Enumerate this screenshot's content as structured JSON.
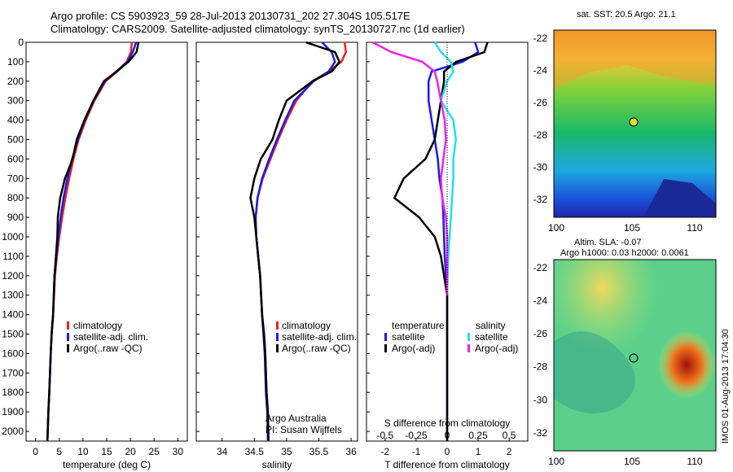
{
  "header": {
    "line1": "Argo profile: CS 5903923_59 28-Jul-2013 20130731_202 27.304S 105.517E",
    "line2": "Climatology: CARS2009. Satellite-adjusted climatology: synTS_20130727.nc (1d earlier)"
  },
  "maps": {
    "sst_title": "sat. SST: 20.5 Argo: 21.1",
    "sla_title1": "Altim. SLA: -0.07",
    "sla_title2": "Argo h1000: 0.03 h2000: 0.0061",
    "lat_ticks": [
      "-22",
      "-24",
      "-26",
      "-28",
      "-30",
      "-32"
    ],
    "lon_ticks": [
      "100",
      "105",
      "110"
    ],
    "argo_lat": -27.304,
    "argo_lon": 105.517
  },
  "stamp": "IMOS 01-Aug-2013 17:04:30",
  "colors": {
    "climatology": "#ee2020",
    "satellite": "#1a1ae6",
    "argo": "#000000",
    "sal_sat": "#22e0ee",
    "sal_argo": "#ee22ee"
  },
  "annotations": {
    "source": "Argo Australia",
    "pi": "PI: Susan Wijffels"
  },
  "chart_data": [
    {
      "type": "line",
      "xlabel": "temperature (deg C)",
      "ylabel": "",
      "xlim": [
        -2,
        32
      ],
      "ylim": [
        0,
        2050
      ],
      "xticks": [
        "0",
        "5",
        "10",
        "15",
        "20",
        "25",
        "30"
      ],
      "yticks": [
        "0",
        "100",
        "200",
        "300",
        "400",
        "500",
        "600",
        "700",
        "800",
        "900",
        "1000",
        "1100",
        "1200",
        "1300",
        "1400",
        "1500",
        "1600",
        "1700",
        "1800",
        "1900",
        "2000"
      ],
      "legend": [
        "climatology",
        "satellite-adj. clim.",
        "Argo(..raw -QC)"
      ],
      "series": [
        {
          "name": "climatology",
          "color": "#ee2020",
          "x": [
            20.3,
            20.1,
            19.2,
            17.2,
            14.8,
            12.4,
            10.6,
            9.1,
            8.0,
            7.1,
            6.3,
            5.6,
            5.0,
            4.5,
            4.1,
            3.7,
            3.4,
            3.2,
            2.9,
            2.7,
            2.5
          ],
          "y": [
            0,
            50,
            100,
            150,
            200,
            300,
            400,
            500,
            600,
            700,
            800,
            900,
            1000,
            1100,
            1200,
            1400,
            1500,
            1600,
            1800,
            1900,
            2050
          ]
        },
        {
          "name": "satellite-adj. clim.",
          "color": "#1a1ae6",
          "x": [
            21.2,
            20.5,
            19.4,
            17.0,
            14.6,
            12.2,
            10.4,
            8.9,
            7.7,
            6.7,
            5.9,
            5.3,
            4.8,
            4.4,
            4.0,
            3.7,
            3.4,
            3.2,
            2.9,
            2.7,
            2.5
          ],
          "y": [
            0,
            50,
            100,
            150,
            200,
            300,
            400,
            500,
            600,
            700,
            800,
            900,
            1000,
            1100,
            1200,
            1400,
            1500,
            1600,
            1800,
            1900,
            2050
          ]
        },
        {
          "name": "Argo(..raw -QC)",
          "color": "#000000",
          "x": [
            21.7,
            21.3,
            19.6,
            17.1,
            14.4,
            12.2,
            10.3,
            8.7,
            7.8,
            6.2,
            5.2,
            4.7,
            4.6,
            4.3,
            4.0,
            3.7,
            3.4,
            3.2,
            2.9,
            2.7,
            2.5
          ],
          "y": [
            0,
            50,
            100,
            150,
            200,
            300,
            400,
            500,
            600,
            700,
            800,
            900,
            1000,
            1100,
            1200,
            1400,
            1500,
            1600,
            1800,
            1900,
            2050
          ]
        }
      ]
    },
    {
      "type": "line",
      "xlabel": "salinity",
      "ylabel": "",
      "xlim": [
        33.6,
        36.1
      ],
      "ylim": [
        0,
        2050
      ],
      "xticks": [
        "34",
        "34.5",
        "35",
        "35.5",
        "36"
      ],
      "legend": [
        "climatology",
        "satellite-adj. clim.",
        "Argo(..raw -QC)"
      ],
      "series": [
        {
          "name": "climatology",
          "color": "#ee2020",
          "x": [
            35.9,
            35.92,
            35.85,
            35.65,
            35.4,
            35.15,
            35.0,
            34.87,
            34.75,
            34.63,
            34.55,
            34.52,
            34.53,
            34.56,
            34.59,
            34.62,
            34.65,
            34.67,
            34.69,
            34.71,
            34.72
          ],
          "y": [
            0,
            50,
            100,
            150,
            200,
            300,
            400,
            500,
            600,
            700,
            800,
            900,
            1000,
            1100,
            1200,
            1400,
            1500,
            1600,
            1800,
            1900,
            2050
          ]
        },
        {
          "name": "satellite-adj. clim.",
          "color": "#1a1ae6",
          "x": [
            35.55,
            35.7,
            35.75,
            35.65,
            35.42,
            35.12,
            34.98,
            34.85,
            34.73,
            34.62,
            34.55,
            34.52,
            34.53,
            34.56,
            34.59,
            34.62,
            34.64,
            34.66,
            34.68,
            34.7,
            34.71
          ],
          "y": [
            0,
            50,
            100,
            150,
            200,
            300,
            400,
            500,
            600,
            700,
            800,
            900,
            1000,
            1100,
            1200,
            1400,
            1500,
            1600,
            1800,
            1900,
            2050
          ]
        },
        {
          "name": "Argo(..raw -QC)",
          "color": "#000000",
          "x": [
            35.3,
            35.75,
            35.82,
            35.7,
            35.4,
            35.0,
            34.88,
            34.78,
            34.6,
            34.5,
            34.44,
            34.5,
            34.53,
            34.56,
            34.59,
            34.62,
            34.65,
            34.67,
            34.69,
            34.71,
            34.72
          ],
          "y": [
            0,
            50,
            100,
            150,
            200,
            300,
            400,
            500,
            600,
            700,
            800,
            900,
            1000,
            1100,
            1200,
            1400,
            1500,
            1600,
            1800,
            1900,
            2050
          ]
        }
      ]
    },
    {
      "type": "line",
      "xlabel": "T difference from climatology",
      "xlabel2": "S difference from climatology",
      "xlim": [
        -2.6,
        2.6
      ],
      "xlim_s": [
        -0.65,
        0.65
      ],
      "ylim": [
        0,
        2050
      ],
      "xticks": [
        "-2",
        "-1",
        "0",
        "1",
        "2"
      ],
      "xticks_s": [
        "-0.5",
        "-0.25",
        "0",
        "0.25",
        "0.5"
      ],
      "legend_titles": [
        "temperature",
        "salinity"
      ],
      "legend": [
        "satellite",
        "Argo(-adj)",
        "satellite",
        "Argo(-adj)"
      ],
      "series": [
        {
          "name": "satellite",
          "group": "temperature",
          "color": "#1a1ae6",
          "x": [
            0.9,
            1.0,
            0.5,
            -0.5,
            -0.6,
            -0.6,
            -0.5,
            -0.4,
            -0.3,
            -0.25,
            -0.15,
            -0.12,
            -0.1,
            -0.08,
            0,
            0
          ],
          "y": [
            0,
            50,
            100,
            150,
            200,
            300,
            400,
            500,
            600,
            700,
            800,
            900,
            1000,
            1100,
            1300,
            2050
          ]
        },
        {
          "name": "Argo(-adj)",
          "group": "temperature",
          "color": "#000000",
          "x": [
            1.3,
            1.2,
            0.3,
            -0.1,
            -0.1,
            -0.2,
            -0.3,
            -0.4,
            -0.7,
            -1.4,
            -1.7,
            -0.9,
            -0.4,
            -0.2,
            0,
            0
          ],
          "y": [
            0,
            50,
            100,
            150,
            200,
            300,
            400,
            500,
            600,
            700,
            800,
            900,
            1000,
            1100,
            1300,
            2050
          ]
        },
        {
          "name": "satellite",
          "group": "salinity",
          "color": "#22e0ee",
          "x": [
            -0.1,
            -0.05,
            0.03,
            0.05,
            0.0,
            -0.05,
            0.05,
            0.07,
            0.05,
            0.05,
            0.04,
            0.03,
            0.02,
            0.01,
            0
          ],
          "y": [
            0,
            50,
            100,
            150,
            200,
            300,
            400,
            500,
            600,
            700,
            800,
            900,
            1000,
            1100,
            1300
          ]
        },
        {
          "name": "Argo(-adj)",
          "group": "salinity",
          "color": "#ee22ee",
          "x": [
            -0.6,
            -0.45,
            -0.2,
            -0.1,
            -0.08,
            -0.05,
            -0.02,
            -0.01,
            -0.03,
            -0.05,
            -0.04,
            -0.01,
            0,
            0,
            0
          ],
          "y": [
            0,
            50,
            100,
            150,
            200,
            300,
            400,
            500,
            600,
            700,
            800,
            900,
            1000,
            1100,
            1300
          ]
        }
      ]
    }
  ]
}
